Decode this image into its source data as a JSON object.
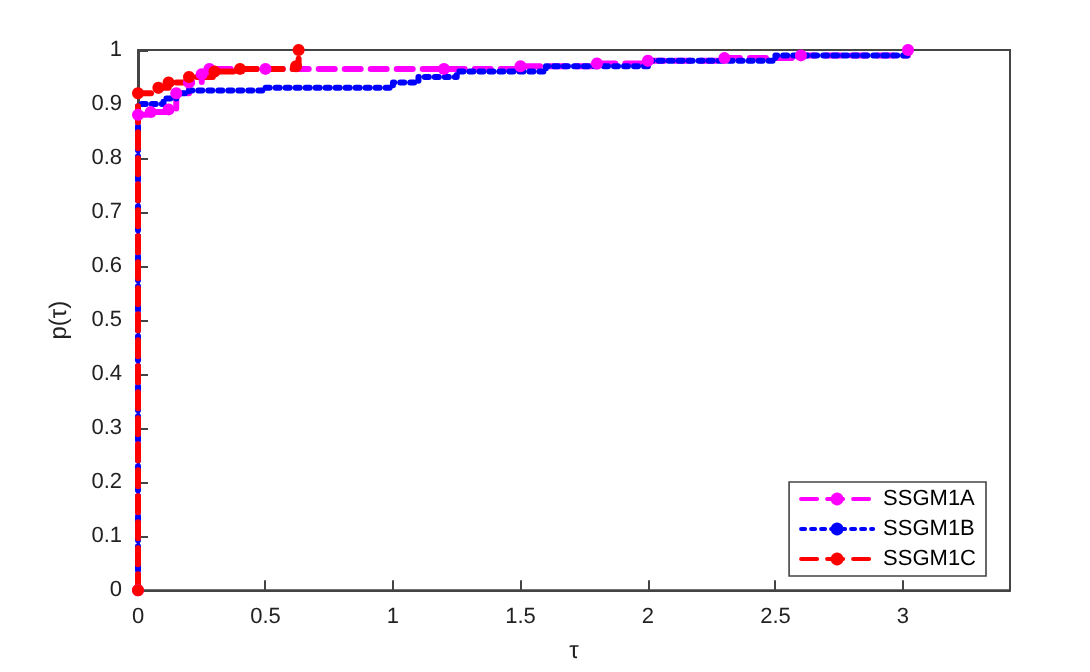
{
  "chart_data": {
    "type": "step",
    "xlabel": "τ",
    "ylabel": "p(τ)",
    "xlim": [
      0,
      3.42
    ],
    "ylim": [
      0,
      1
    ],
    "xticks": [
      0,
      0.5,
      1,
      1.5,
      2,
      2.5,
      3
    ],
    "yticks": [
      0,
      0.1,
      0.2,
      0.3,
      0.4,
      0.5,
      0.6,
      0.7,
      0.8,
      0.9,
      1
    ],
    "grid": false,
    "legend": "bottom right",
    "series": [
      {
        "name": "SSGM1A",
        "color": "#ff00ff",
        "marker": "circle",
        "line_style": "dashed",
        "x": [
          0,
          0,
          0.05,
          0.12,
          0.15,
          0.2,
          0.25,
          0.28,
          0.5,
          1.2,
          1.5,
          1.8,
          2.0,
          2.3,
          2.6,
          3.02
        ],
        "values": [
          0,
          0.88,
          0.885,
          0.89,
          0.92,
          0.94,
          0.955,
          0.965,
          0.965,
          0.965,
          0.97,
          0.975,
          0.98,
          0.985,
          0.99,
          1.0
        ]
      },
      {
        "name": "SSGM1B",
        "color": "#0000ff",
        "marker": "none",
        "line_style": "dotted",
        "x": [
          0,
          0,
          0.1,
          0.15,
          0.2,
          0.5,
          0.85,
          1.0,
          1.1,
          1.25,
          1.6,
          2.0,
          2.5,
          3.02
        ],
        "values": [
          0,
          0.9,
          0.91,
          0.92,
          0.925,
          0.93,
          0.93,
          0.94,
          0.95,
          0.96,
          0.97,
          0.98,
          0.99,
          1.0
        ]
      },
      {
        "name": "SSGM1C",
        "color": "#ff0000",
        "marker": "circle",
        "line_style": "dashed",
        "x": [
          0,
          0,
          0.08,
          0.12,
          0.2,
          0.3,
          0.4,
          0.62,
          0.63
        ],
        "values": [
          0,
          0.92,
          0.93,
          0.94,
          0.95,
          0.96,
          0.965,
          0.97,
          1.0
        ]
      }
    ]
  }
}
